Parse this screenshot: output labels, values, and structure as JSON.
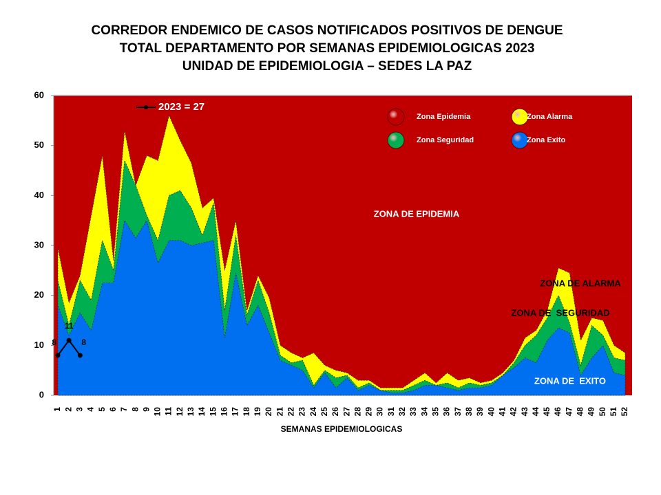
{
  "chart_data": {
    "type": "area",
    "title": [
      "CORREDOR ENDEMICO DE CASOS NOTIFICADOS POSITIVOS DE DENGUE",
      "TOTAL DEPARTAMENTO POR SEMANAS EPIDEMIOLOGICAS 2023",
      "UNIDAD DE EPIDEMIOLOGIA – SEDES LA PAZ"
    ],
    "xlabel": "SEMANAS EPIDEMIOLOGICAS",
    "categories": [
      "1",
      "2",
      "3",
      "4",
      "5",
      "6",
      "7",
      "8",
      "9",
      "10",
      "11",
      "12",
      "13",
      "14",
      "15",
      "16",
      "17",
      "18",
      "19",
      "20",
      "21",
      "22",
      "23",
      "24",
      "25",
      "26",
      "27",
      "28",
      "29",
      "30",
      "31",
      "32",
      "33",
      "34",
      "35",
      "36",
      "37",
      "38",
      "39",
      "40",
      "41",
      "42",
      "43",
      "44",
      "45",
      "46",
      "47",
      "48",
      "49",
      "50",
      "51",
      "52"
    ],
    "background_zone": {
      "name": "Zona Epidemia",
      "color": "#c00000"
    },
    "series": [
      {
        "name": "Zona Alarma",
        "color": "#ffff00",
        "values": [
          29.5,
          18.5,
          24,
          36,
          48,
          27,
          53,
          42,
          48,
          47,
          56,
          51,
          46.5,
          37.5,
          39.5,
          25,
          35,
          17,
          24,
          19.5,
          10,
          8.5,
          7.5,
          8.5,
          6,
          5,
          4.5,
          3,
          3,
          1.5,
          1.5,
          1.5,
          3,
          4.5,
          2.5,
          4.5,
          3,
          3.5,
          2.5,
          3,
          4.5,
          7,
          11.5,
          13,
          17,
          25.5,
          24.5,
          11,
          15.5,
          15,
          10,
          8.5
        ]
      },
      {
        "name": "Zona Seguridad",
        "color": "#00b050",
        "values": [
          23,
          14,
          23,
          19,
          31,
          25,
          47,
          42,
          36,
          31,
          40,
          41,
          37.5,
          32,
          38.5,
          17,
          32,
          16,
          23,
          16.5,
          8,
          6.5,
          7,
          2,
          5,
          3.5,
          4,
          1.5,
          2.5,
          1,
          1,
          1,
          2,
          3,
          2,
          2.5,
          1.5,
          2.5,
          2,
          2.5,
          4,
          6.5,
          10,
          12,
          15.5,
          20,
          14.5,
          6,
          14,
          12,
          7.5,
          7
        ]
      },
      {
        "name": "Zona Exito",
        "color": "#0070f0",
        "values": [
          18,
          12,
          16.5,
          13,
          22.5,
          22.5,
          35,
          31.5,
          35,
          26.5,
          31,
          31,
          30,
          30.5,
          31,
          11.5,
          24.5,
          14,
          18,
          12.5,
          7,
          6,
          5,
          1.5,
          4.5,
          1.5,
          3.5,
          1,
          2,
          1,
          0.5,
          0.5,
          1,
          2,
          2,
          1.5,
          1,
          1.5,
          1.5,
          2,
          4,
          5.5,
          7.5,
          6.5,
          11,
          13.5,
          12.5,
          4,
          7.5,
          10,
          4.5,
          4
        ]
      }
    ],
    "line_series": {
      "name": "2023 = 27",
      "color": "#000000",
      "values": [
        8,
        11,
        8
      ]
    },
    "annotations": [
      "ZONA DE EPIDEMIA",
      "ZONA DE ALARMA",
      "ZONA DE  SEGURIDAD",
      "ZONA DE  EXITO"
    ],
    "ylim": [
      0,
      60
    ],
    "yticks": [
      0,
      10,
      20,
      30,
      40,
      50,
      60
    ]
  }
}
